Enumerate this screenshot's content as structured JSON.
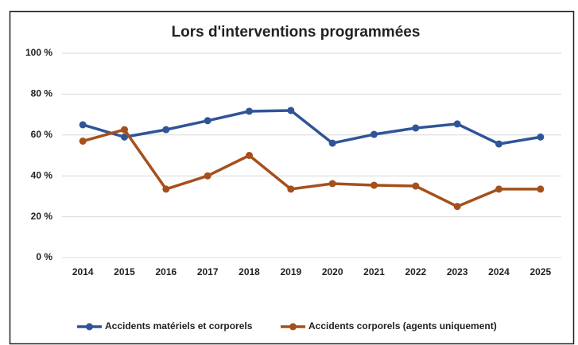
{
  "chart_data": {
    "type": "line",
    "title": "Lors d'interventions programmées",
    "categories": [
      "2014",
      "2015",
      "2016",
      "2017",
      "2018",
      "2019",
      "2020",
      "2021",
      "2022",
      "2023",
      "2024",
      "2025"
    ],
    "series": [
      {
        "name": "Accidents matériels et corporels",
        "color": "#2f5597",
        "values": [
          65,
          59,
          62.6,
          67,
          71.6,
          72,
          56,
          60.3,
          63.4,
          65.4,
          55.6,
          59
        ]
      },
      {
        "name": "Accidents corporels (agents uniquement)",
        "color": "#a5501c",
        "values": [
          57,
          62.6,
          33.5,
          40,
          50,
          33.5,
          36.2,
          35.4,
          35,
          25,
          33.5,
          33.5
        ]
      }
    ],
    "ylim": [
      0,
      100
    ],
    "yticks": [
      {
        "value": 0,
        "label": "0 %"
      },
      {
        "value": 20,
        "label": "20 %"
      },
      {
        "value": 40,
        "label": "40 %"
      },
      {
        "value": 60,
        "label": "60 %"
      },
      {
        "value": 80,
        "label": "80 %"
      },
      {
        "value": 100,
        "label": "100 %"
      }
    ],
    "grid": true,
    "legend": "bottom"
  }
}
